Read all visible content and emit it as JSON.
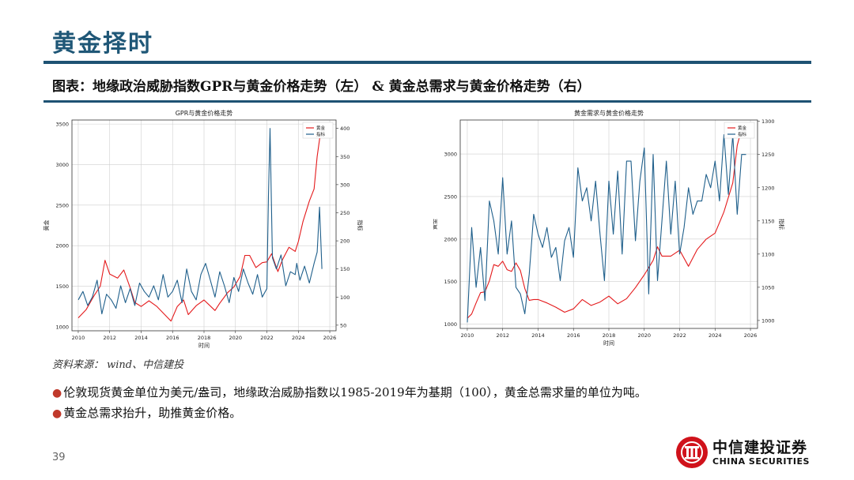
{
  "slide": {
    "title": "黄金择时",
    "caption": "图表：地缘政治威胁指数GPR与黄金价格走势（左） & 黄金总需求与黄金价格走势（右）",
    "source": "资料来源： wind、中信建投",
    "bullets": [
      "伦敦现货黄金单位为美元/盎司，地缘政治威胁指数以1985-2019年为基期（100），黄金总需求量的单位为吨。",
      "黄金总需求抬升，助推黄金价格。"
    ],
    "page_number": "39",
    "logo_cn": "中信建投证券",
    "logo_en": "CHINA SECURITIES"
  },
  "colors": {
    "brand": "#1e5273",
    "gold_line": "#e41a1c",
    "index_line": "#1f5f8b",
    "bullet": "#c0392b"
  },
  "chart_data": [
    {
      "type": "line",
      "title": "GPR与黄金价格走势",
      "xlabel": "时间",
      "ylabel_left": "黄金",
      "ylabel_right": "指标",
      "x_ticks": [
        "2010",
        "2012",
        "2014",
        "2016",
        "2018",
        "2020",
        "2022",
        "2024",
        "2026"
      ],
      "y_left_ticks": [
        "1000",
        "1500",
        "2000",
        "2500",
        "3000",
        "3500"
      ],
      "y_right_ticks": [
        "50",
        "100",
        "150",
        "200",
        "250",
        "300",
        "350",
        "400"
      ],
      "xlim": [
        2009.6,
        2026.4
      ],
      "ylim_left": [
        950,
        3550
      ],
      "ylim_right": [
        40,
        415
      ],
      "legend": [
        "黄金",
        "指标"
      ],
      "series": [
        {
          "name": "黄金",
          "axis": "left",
          "x": [
            2010.0,
            2010.5,
            2011.0,
            2011.4,
            2011.7,
            2012.0,
            2012.5,
            2012.9,
            2013.3,
            2013.6,
            2014.0,
            2014.5,
            2015.0,
            2015.5,
            2015.9,
            2016.3,
            2016.7,
            2017.0,
            2017.5,
            2018.0,
            2018.7,
            2019.0,
            2019.5,
            2019.9,
            2020.3,
            2020.6,
            2020.9,
            2021.3,
            2021.7,
            2022.0,
            2022.3,
            2022.7,
            2023.0,
            2023.4,
            2023.8,
            2024.0,
            2024.3,
            2024.7,
            2025.0,
            2025.2,
            2025.4,
            2025.6
          ],
          "y": [
            1110,
            1210,
            1380,
            1500,
            1820,
            1650,
            1600,
            1700,
            1480,
            1300,
            1250,
            1320,
            1250,
            1150,
            1070,
            1250,
            1330,
            1150,
            1260,
            1330,
            1200,
            1290,
            1420,
            1490,
            1620,
            1880,
            1880,
            1730,
            1790,
            1800,
            1900,
            1680,
            1830,
            1980,
            1930,
            2050,
            2300,
            2550,
            2700,
            3100,
            3380,
            3350
          ]
        },
        {
          "name": "指标",
          "axis": "right",
          "x": [
            2010.0,
            2010.3,
            2010.6,
            2010.9,
            2011.2,
            2011.5,
            2011.8,
            2012.1,
            2012.4,
            2012.7,
            2013.0,
            2013.3,
            2013.6,
            2013.9,
            2014.2,
            2014.5,
            2014.8,
            2015.1,
            2015.4,
            2015.7,
            2016.0,
            2016.3,
            2016.6,
            2016.9,
            2017.2,
            2017.5,
            2017.8,
            2018.1,
            2018.4,
            2018.7,
            2019.0,
            2019.3,
            2019.6,
            2019.9,
            2020.2,
            2020.5,
            2020.8,
            2021.1,
            2021.4,
            2021.7,
            2022.0,
            2022.1,
            2022.2,
            2022.35,
            2022.6,
            2022.9,
            2023.2,
            2023.5,
            2023.8,
            2023.9,
            2024.1,
            2024.4,
            2024.7,
            2025.0,
            2025.2,
            2025.35,
            2025.5
          ],
          "y": [
            95,
            110,
            85,
            100,
            130,
            70,
            105,
            95,
            80,
            120,
            90,
            115,
            85,
            125,
            110,
            100,
            120,
            95,
            140,
            100,
            110,
            130,
            90,
            150,
            110,
            95,
            140,
            160,
            130,
            100,
            145,
            120,
            90,
            135,
            110,
            150,
            125,
            105,
            140,
            100,
            115,
            280,
            400,
            170,
            150,
            175,
            120,
            145,
            140,
            160,
            130,
            155,
            125,
            160,
            180,
            260,
            150
          ]
        }
      ]
    },
    {
      "type": "line",
      "title": "黄金需求与黄金价格走势",
      "xlabel": "时间",
      "ylabel_left": "黄金",
      "ylabel_right": "指标",
      "x_ticks": [
        "2010",
        "2012",
        "2014",
        "2016",
        "2018",
        "2020",
        "2022",
        "2024",
        "2026"
      ],
      "y_left_ticks": [
        "1000",
        "1500",
        "2000",
        "2500",
        "3000"
      ],
      "y_right_ticks": [
        "1000",
        "1050",
        "1100",
        "1150",
        "1200",
        "1250",
        "1300"
      ],
      "xlim": [
        2009.6,
        2026.4
      ],
      "ylim_left": [
        950,
        3400
      ],
      "ylim_right": [
        988,
        1302
      ],
      "legend": [
        "黄金",
        "指标"
      ],
      "series": [
        {
          "name": "黄金",
          "axis": "left",
          "x": [
            2010.0,
            2010.25,
            2010.5,
            2010.75,
            2011.0,
            2011.25,
            2011.5,
            2011.75,
            2012.0,
            2012.25,
            2012.5,
            2012.75,
            2013.0,
            2013.25,
            2013.5,
            2013.75,
            2014.0,
            2014.5,
            2015.0,
            2015.5,
            2016.0,
            2016.5,
            2017.0,
            2017.5,
            2018.0,
            2018.5,
            2019.0,
            2019.5,
            2020.0,
            2020.5,
            2020.75,
            2021.0,
            2021.5,
            2022.0,
            2022.5,
            2023.0,
            2023.5,
            2024.0,
            2024.5,
            2025.0,
            2025.25,
            2025.5,
            2025.75
          ],
          "y": [
            1070,
            1120,
            1250,
            1370,
            1380,
            1510,
            1700,
            1680,
            1740,
            1640,
            1620,
            1720,
            1630,
            1420,
            1280,
            1290,
            1290,
            1250,
            1200,
            1140,
            1180,
            1290,
            1220,
            1260,
            1330,
            1240,
            1300,
            1430,
            1580,
            1750,
            1910,
            1800,
            1800,
            1870,
            1680,
            1880,
            2000,
            2070,
            2320,
            2660,
            3100,
            3300,
            3350
          ]
        },
        {
          "name": "指标",
          "axis": "right",
          "x": [
            2010.0,
            2010.25,
            2010.5,
            2010.75,
            2011.0,
            2011.25,
            2011.5,
            2011.75,
            2012.0,
            2012.25,
            2012.5,
            2012.75,
            2013.0,
            2013.25,
            2013.5,
            2013.75,
            2014.0,
            2014.25,
            2014.5,
            2014.75,
            2015.0,
            2015.25,
            2015.5,
            2015.75,
            2016.0,
            2016.25,
            2016.5,
            2016.75,
            2017.0,
            2017.25,
            2017.5,
            2017.75,
            2018.0,
            2018.25,
            2018.5,
            2018.75,
            2019.0,
            2019.25,
            2019.5,
            2019.75,
            2020.0,
            2020.25,
            2020.5,
            2020.75,
            2021.0,
            2021.25,
            2021.5,
            2021.75,
            2022.0,
            2022.25,
            2022.5,
            2022.75,
            2023.0,
            2023.25,
            2023.5,
            2023.75,
            2024.0,
            2024.25,
            2024.5,
            2024.75,
            2025.0,
            2025.25,
            2025.5,
            2025.75
          ],
          "y": [
            997,
            1140,
            1050,
            1110,
            1030,
            1180,
            1150,
            1100,
            1215,
            1100,
            1150,
            1050,
            1040,
            1010,
            1070,
            1160,
            1130,
            1110,
            1140,
            1095,
            1110,
            1060,
            1120,
            1140,
            1095,
            1230,
            1180,
            1200,
            1150,
            1210,
            1130,
            1060,
            1210,
            1130,
            1225,
            1100,
            1240,
            1240,
            1120,
            1210,
            1260,
            1040,
            1250,
            1060,
            1150,
            1240,
            1130,
            1210,
            1100,
            1140,
            1200,
            1160,
            1180,
            1180,
            1220,
            1200,
            1240,
            1180,
            1280,
            1190,
            1280,
            1160,
            1250,
            1250
          ]
        }
      ]
    }
  ]
}
